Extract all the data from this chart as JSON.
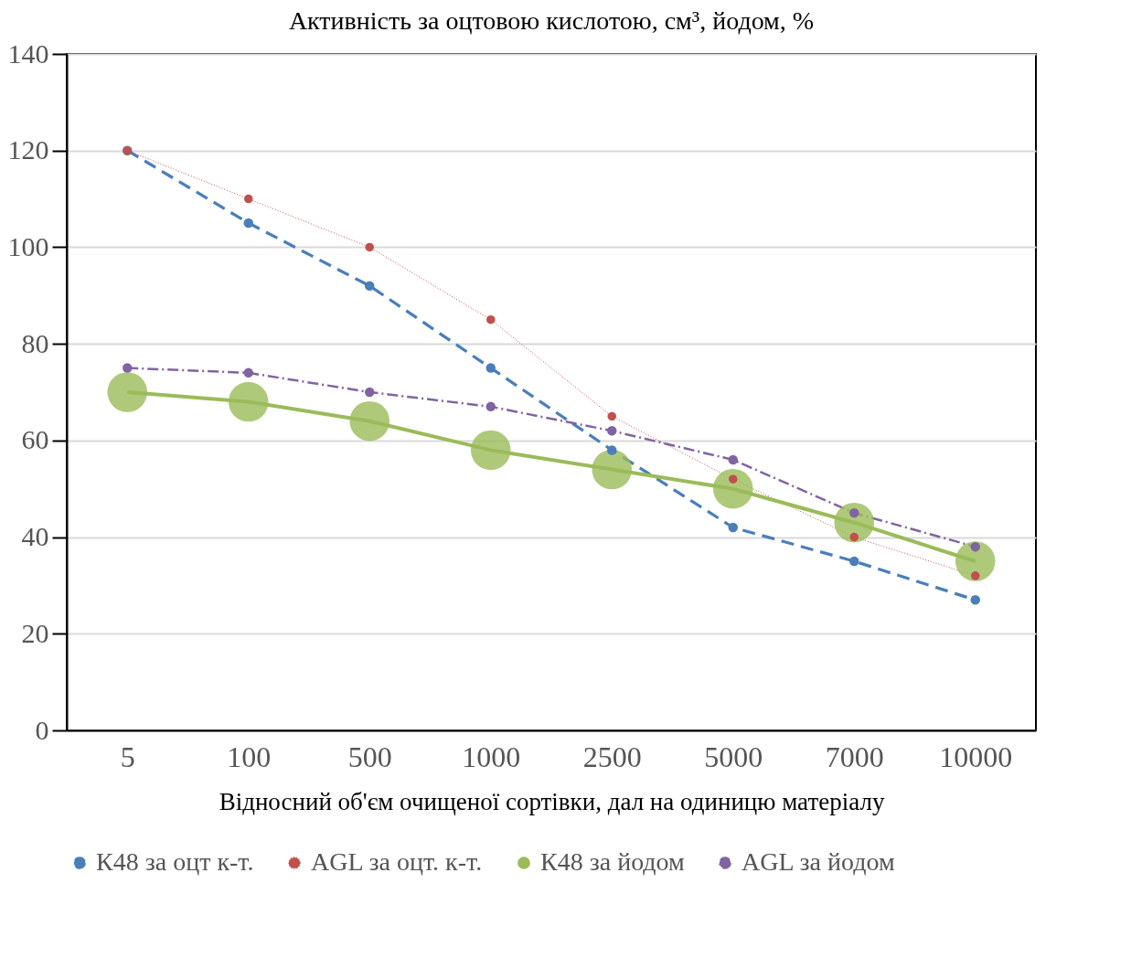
{
  "chart_data": {
    "type": "line",
    "title": "Активність за оцтовою кислотою, см³, йодом, %",
    "xlabel": "Відносний об'єм очищеної сортівки, дал на одиницю матеріалу",
    "categories": [
      "5",
      "100",
      "500",
      "1000",
      "2500",
      "5000",
      "7000",
      "10000"
    ],
    "series": [
      {
        "name": "К48 за оцт к-т.",
        "color": "#4a7ebb",
        "line_style": "dashed",
        "values": [
          120,
          105,
          92,
          75,
          58,
          42,
          35,
          27
        ]
      },
      {
        "name": "AGL за оцт. к-т.",
        "color": "#c0504d",
        "line_style": "dotted",
        "values": [
          120,
          110,
          100,
          85,
          65,
          52,
          40,
          32
        ]
      },
      {
        "name": "К48 за йодом",
        "color": "#9bbb59",
        "line_style": "solid",
        "values": [
          70,
          68,
          64,
          58,
          54,
          50,
          43,
          35
        ]
      },
      {
        "name": "AGL за йодом",
        "color": "#8064a2",
        "line_style": "dashed",
        "values": [
          75,
          74,
          70,
          67,
          62,
          56,
          45,
          38
        ]
      }
    ],
    "ylim": [
      0,
      140
    ],
    "yticks": [
      0,
      20,
      40,
      60,
      80,
      100,
      120,
      140
    ],
    "grid": "y",
    "legend": "bottom",
    "marker": "circle"
  }
}
